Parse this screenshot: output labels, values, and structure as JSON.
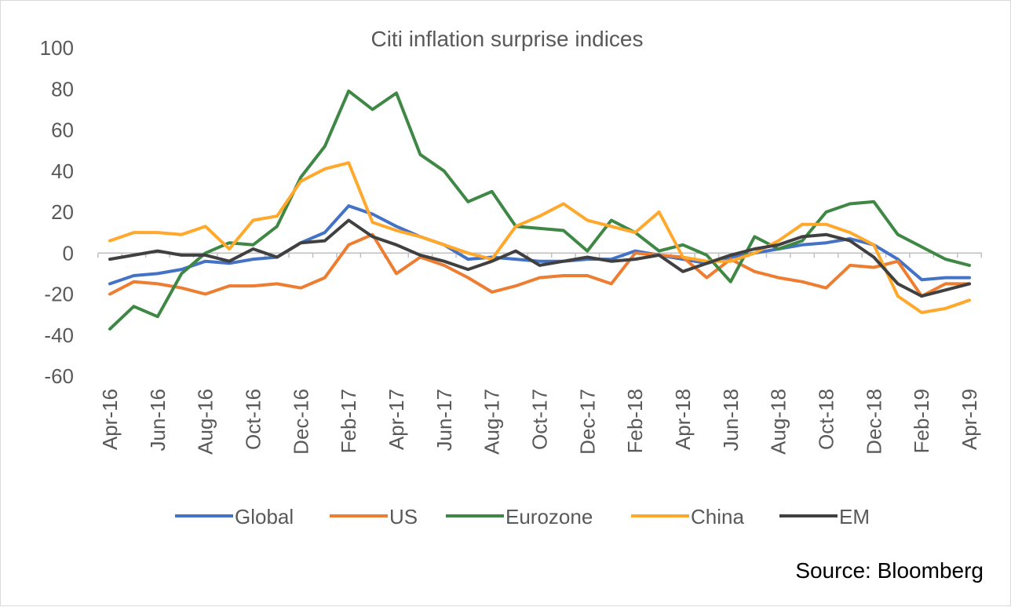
{
  "source_note": "Source: Bloomberg",
  "chart_data": {
    "type": "line",
    "title": "Citi inflation surprise indices",
    "xlabel": "",
    "ylabel": "",
    "ylim": [
      -60,
      100
    ],
    "yticks": [
      100,
      80,
      60,
      40,
      20,
      0,
      -20,
      -40,
      -60
    ],
    "grid": false,
    "legend_position": "bottom",
    "x": [
      "Apr-16",
      "May-16",
      "Jun-16",
      "Jul-16",
      "Aug-16",
      "Sep-16",
      "Oct-16",
      "Nov-16",
      "Dec-16",
      "Jan-17",
      "Feb-17",
      "Mar-17",
      "Apr-17",
      "May-17",
      "Jun-17",
      "Jul-17",
      "Aug-17",
      "Sep-17",
      "Oct-17",
      "Nov-17",
      "Dec-17",
      "Jan-18",
      "Feb-18",
      "Mar-18",
      "Apr-18",
      "May-18",
      "Jun-18",
      "Jul-18",
      "Aug-18",
      "Sep-18",
      "Oct-18",
      "Nov-18",
      "Dec-18",
      "Jan-19",
      "Feb-19",
      "Mar-19",
      "Apr-19"
    ],
    "xtick_labels": [
      "Apr-16",
      "Jun-16",
      "Aug-16",
      "Oct-16",
      "Dec-16",
      "Feb-17",
      "Apr-17",
      "Jun-17",
      "Aug-17",
      "Oct-17",
      "Dec-17",
      "Feb-18",
      "Apr-18",
      "Jun-18",
      "Aug-18",
      "Oct-18",
      "Dec-18",
      "Feb-19",
      "Apr-19"
    ],
    "series": [
      {
        "name": "Global",
        "color": "#4472C4",
        "values": [
          -15,
          -11,
          -10,
          -8,
          -4,
          -5,
          -3,
          -2,
          5,
          10,
          23,
          19,
          13,
          8,
          4,
          -3,
          -2,
          -3,
          -4,
          -4,
          -3,
          -3,
          1,
          -1,
          -3,
          -5,
          -2,
          0,
          2,
          4,
          5,
          7,
          4,
          -3,
          -13,
          -12,
          -12
        ]
      },
      {
        "name": "US",
        "color": "#ED7D31",
        "values": [
          -20,
          -14,
          -15,
          -17,
          -20,
          -16,
          -16,
          -15,
          -17,
          -12,
          4,
          9,
          -10,
          -2,
          -6,
          -12,
          -19,
          -16,
          -12,
          -11,
          -11,
          -15,
          0,
          -1,
          -2,
          -12,
          -3,
          -9,
          -12,
          -14,
          -17,
          -6,
          -7,
          -4,
          -21,
          -15,
          -15
        ]
      },
      {
        "name": "Eurozone",
        "color": "#3E8744",
        "values": [
          -37,
          -26,
          -31,
          -10,
          0,
          5,
          4,
          13,
          37,
          52,
          79,
          70,
          78,
          48,
          40,
          25,
          30,
          13,
          12,
          11,
          1,
          16,
          10,
          1,
          4,
          -1,
          -14,
          8,
          2,
          6,
          20,
          24,
          25,
          9,
          3,
          -3,
          -6
        ]
      },
      {
        "name": "China",
        "color": "#FFA82B",
        "values": [
          6,
          10,
          10,
          9,
          13,
          2,
          16,
          18,
          35,
          41,
          44,
          15,
          11,
          8,
          4,
          0,
          -3,
          13,
          18,
          24,
          16,
          13,
          10,
          20,
          -2,
          -4,
          -4,
          0,
          6,
          14,
          14,
          10,
          4,
          -21,
          -29,
          -27,
          -23
        ]
      },
      {
        "name": "EM",
        "color": "#404040",
        "values": [
          -3,
          -1,
          1,
          -1,
          -1,
          -4,
          2,
          -2,
          5,
          6,
          16,
          8,
          4,
          -1,
          -4,
          -8,
          -4,
          1,
          -6,
          -4,
          -2,
          -4,
          -3,
          -1,
          -9,
          -5,
          -1,
          2,
          4,
          8,
          9,
          6,
          -2,
          -15,
          -21,
          -18,
          -15
        ]
      }
    ]
  }
}
